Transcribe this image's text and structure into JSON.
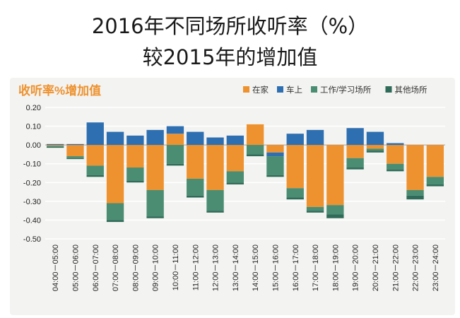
{
  "title": {
    "line1": "2016年不同场所收听率（%）",
    "line2": "较2015年的增加值"
  },
  "colors": {
    "home": "#ee922f",
    "car": "#2e6fb1",
    "work": "#4a8d72",
    "other": "#2f6b58",
    "subtitle": "#ee922f",
    "panel": "#f3f3f1",
    "grid": "#ffffff"
  },
  "chart_data": {
    "type": "bar",
    "stacked": true,
    "title": "收听率%增加值",
    "legend_position": "top-right",
    "grid": true,
    "ylim": [
      -0.5,
      0.2
    ],
    "yticks": [
      0.2,
      0.1,
      0.0,
      -0.1,
      -0.2,
      -0.3,
      -0.4,
      -0.5
    ],
    "ytick_labels": [
      "0.20",
      "0.10",
      "0.00",
      "-0.10",
      "-0.20",
      "-0.30",
      "-0.40",
      "-0.50"
    ],
    "categories": [
      "04:00－05:00",
      "05:00－06:00",
      "06:00－07:00",
      "07:00－08:00",
      "08:00－09:00",
      "09:00－10:00",
      "10:00－11:00",
      "11:00－12:00",
      "12:00－13:00",
      "13:00－14:00",
      "14:00－15:00",
      "15:00－16:00",
      "16:00－17:00",
      "17:00－18:00",
      "18:00－19:00",
      "19:00－20:00",
      "20:00－21:00",
      "21:00－22:00",
      "22:00－23:00",
      "23:00－24:00"
    ],
    "series": [
      {
        "name": "在家",
        "key": "home",
        "values": [
          -0.005,
          -0.06,
          -0.11,
          -0.31,
          -0.12,
          -0.24,
          0.06,
          -0.18,
          -0.24,
          -0.14,
          0.11,
          -0.04,
          -0.23,
          -0.33,
          -0.32,
          -0.07,
          -0.02,
          -0.1,
          -0.24,
          -0.17
        ]
      },
      {
        "name": "车上",
        "key": "car",
        "values": [
          0.005,
          0.005,
          0.12,
          0.07,
          0.05,
          0.08,
          0.04,
          0.07,
          0.04,
          0.05,
          0.0,
          -0.02,
          0.06,
          0.08,
          0.0,
          0.09,
          0.07,
          0.01,
          0.0,
          0.0
        ]
      },
      {
        "name": "工作/学习场所",
        "key": "work",
        "values": [
          -0.005,
          -0.01,
          -0.05,
          -0.09,
          -0.07,
          -0.14,
          -0.1,
          -0.09,
          -0.11,
          -0.06,
          -0.05,
          -0.1,
          -0.05,
          -0.02,
          -0.05,
          -0.05,
          -0.01,
          -0.03,
          -0.03,
          -0.04
        ]
      },
      {
        "name": "其他场所",
        "key": "other",
        "values": [
          -0.005,
          -0.005,
          -0.01,
          -0.01,
          -0.01,
          -0.01,
          -0.01,
          -0.01,
          -0.01,
          -0.01,
          -0.01,
          -0.01,
          -0.01,
          -0.01,
          -0.02,
          -0.01,
          -0.01,
          -0.01,
          -0.02,
          -0.01
        ]
      }
    ]
  }
}
